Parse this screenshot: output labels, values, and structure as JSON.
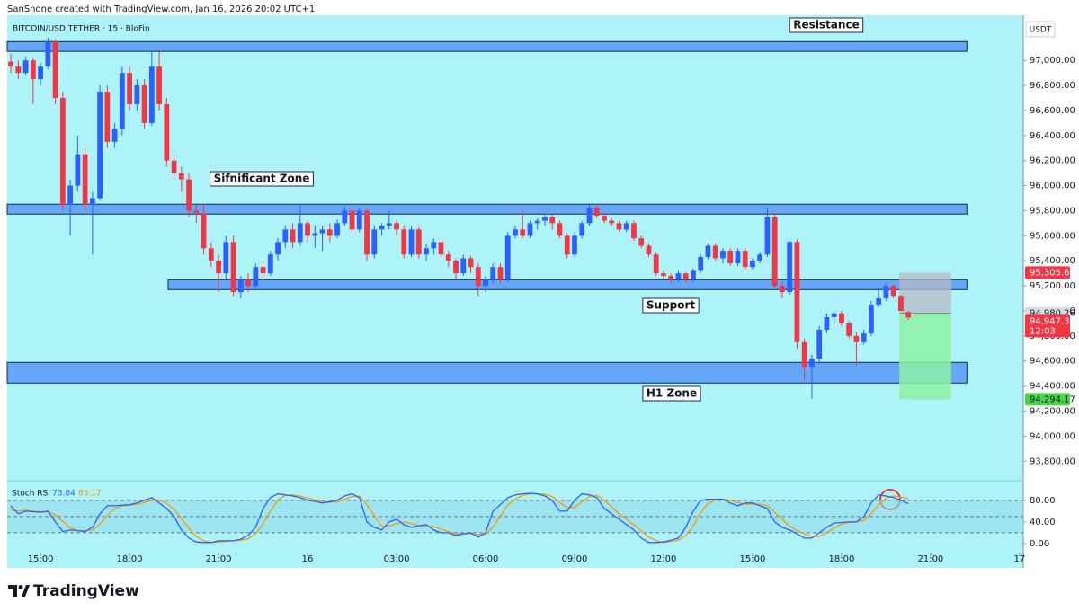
{
  "header": {
    "credit": "SanShone created with TradingView.com, Jan 16, 2026 20:02 UTC+1"
  },
  "footer": {
    "logo": "TradingView"
  },
  "chart_data": {
    "type": "candlestick",
    "title": "BITCOIN/USD TETHER · 15 · BloFin",
    "currency": "USDT",
    "up_color": "#2962ff",
    "down_color": "#f23645",
    "grid": false,
    "xlim": [
      -0.5,
      136.5
    ],
    "xticks": [
      {
        "value": 4,
        "label": "15:00"
      },
      {
        "value": 16,
        "label": "18:00"
      },
      {
        "value": 28,
        "label": "21:00"
      },
      {
        "value": 40,
        "label": "16"
      },
      {
        "value": 52,
        "label": "03:00"
      },
      {
        "value": 64,
        "label": "06:00"
      },
      {
        "value": 76,
        "label": "09:00"
      },
      {
        "value": 88,
        "label": "12:00"
      },
      {
        "value": 100,
        "label": "15:00"
      },
      {
        "value": 112,
        "label": "18:00"
      },
      {
        "value": 124,
        "label": "21:00"
      },
      {
        "value": 136,
        "label": "17"
      }
    ],
    "ylim": [
      93680,
      97195
    ],
    "yticks": [
      {
        "value": 93800,
        "label": "93,800.00"
      },
      {
        "value": 94000,
        "label": "94,000.00"
      },
      {
        "value": 94200,
        "label": "94,200.00"
      },
      {
        "value": 94400,
        "label": "94,400.00"
      },
      {
        "value": 94600,
        "label": "94,600.00"
      },
      {
        "value": 94800,
        "label": "94,800.00"
      },
      {
        "value": 95000,
        "label": "95,000.00"
      },
      {
        "value": 95200,
        "label": "95,200.00"
      },
      {
        "value": 95400,
        "label": "95,400.00"
      },
      {
        "value": 95600,
        "label": "95,600.00"
      },
      {
        "value": 95800,
        "label": "95,800.00"
      },
      {
        "value": 96000,
        "label": "96,000.00"
      },
      {
        "value": 96200,
        "label": "96,200.00"
      },
      {
        "value": 96400,
        "label": "96,400.00"
      },
      {
        "value": 96600,
        "label": "96,600.00"
      },
      {
        "value": 96800,
        "label": "96,800.00"
      },
      {
        "value": 97000,
        "label": "97,000.00"
      }
    ],
    "candles": [
      [
        96990,
        97050,
        96900,
        96950
      ],
      [
        96950,
        97000,
        96850,
        96900
      ],
      [
        96900,
        97030,
        96880,
        97000
      ],
      [
        97000,
        97020,
        96650,
        96850
      ],
      [
        96850,
        96980,
        96800,
        96950
      ],
      [
        96950,
        97180,
        96930,
        97150
      ],
      [
        97150,
        97170,
        96650,
        96700
      ],
      [
        96700,
        96750,
        95800,
        95850
      ],
      [
        95850,
        96050,
        95600,
        96000
      ],
      [
        96000,
        96400,
        95950,
        96250
      ],
      [
        96250,
        96300,
        95800,
        95850
      ],
      [
        95850,
        95950,
        95450,
        95900
      ],
      [
        95900,
        96800,
        95880,
        96750
      ],
      [
        96750,
        96800,
        96300,
        96350
      ],
      [
        96350,
        96500,
        96300,
        96450
      ],
      [
        96450,
        96950,
        96400,
        96900
      ],
      [
        96900,
        96950,
        96600,
        96650
      ],
      [
        96650,
        96850,
        96600,
        96800
      ],
      [
        96800,
        96850,
        96450,
        96500
      ],
      [
        96500,
        97080,
        96480,
        96950
      ],
      [
        96950,
        97070,
        96600,
        96650
      ],
      [
        96650,
        96700,
        96150,
        96200
      ],
      [
        96200,
        96250,
        96050,
        96100
      ],
      [
        96100,
        96150,
        95950,
        96050
      ],
      [
        96050,
        96100,
        95750,
        95800
      ],
      [
        95800,
        95850,
        95700,
        95780
      ],
      [
        95780,
        95850,
        95450,
        95500
      ],
      [
        95500,
        95550,
        95350,
        95400
      ],
      [
        95400,
        95450,
        95150,
        95300
      ],
      [
        95300,
        95600,
        95250,
        95550
      ],
      [
        95550,
        95600,
        95120,
        95150
      ],
      [
        95150,
        95280,
        95100,
        95250
      ],
      [
        95250,
        95300,
        95150,
        95200
      ],
      [
        95200,
        95380,
        95180,
        95350
      ],
      [
        95350,
        95400,
        95250,
        95300
      ],
      [
        95300,
        95480,
        95280,
        95450
      ],
      [
        95450,
        95580,
        95400,
        95550
      ],
      [
        95550,
        95680,
        95500,
        95650
      ],
      [
        95650,
        95700,
        95500,
        95550
      ],
      [
        95550,
        95850,
        95520,
        95700
      ],
      [
        95700,
        95720,
        95550,
        95600
      ],
      [
        95600,
        95680,
        95500,
        95620
      ],
      [
        95620,
        95680,
        95480,
        95650
      ],
      [
        95650,
        95700,
        95550,
        95600
      ],
      [
        95600,
        95730,
        95580,
        95700
      ],
      [
        95700,
        95830,
        95680,
        95800
      ],
      [
        95800,
        95820,
        95620,
        95650
      ],
      [
        95650,
        95820,
        95630,
        95800
      ],
      [
        95800,
        95810,
        95400,
        95450
      ],
      [
        95450,
        95680,
        95420,
        95650
      ],
      [
        95650,
        95700,
        95600,
        95680
      ],
      [
        95680,
        95800,
        95650,
        95700
      ],
      [
        95700,
        95720,
        95600,
        95650
      ],
      [
        95650,
        95680,
        95420,
        95450
      ],
      [
        95450,
        95680,
        95430,
        95650
      ],
      [
        95650,
        95670,
        95420,
        95450
      ],
      [
        95450,
        95530,
        95400,
        95500
      ],
      [
        95500,
        95580,
        95450,
        95550
      ],
      [
        95550,
        95570,
        95420,
        95450
      ],
      [
        95450,
        95480,
        95350,
        95400
      ],
      [
        95400,
        95420,
        95250,
        95300
      ],
      [
        95300,
        95450,
        95280,
        95420
      ],
      [
        95420,
        95440,
        95300,
        95350
      ],
      [
        95350,
        95380,
        95120,
        95200
      ],
      [
        95200,
        95280,
        95150,
        95250
      ],
      [
        95250,
        95380,
        95220,
        95350
      ],
      [
        95350,
        95380,
        95220,
        95250
      ],
      [
        95250,
        95630,
        95230,
        95600
      ],
      [
        95600,
        95680,
        95580,
        95650
      ],
      [
        95650,
        95800,
        95580,
        95600
      ],
      [
        95600,
        95720,
        95580,
        95700
      ],
      [
        95700,
        95740,
        95650,
        95720
      ],
      [
        95720,
        95780,
        95680,
        95750
      ],
      [
        95750,
        95770,
        95650,
        95700
      ],
      [
        95700,
        95720,
        95580,
        95600
      ],
      [
        95600,
        95620,
        95420,
        95450
      ],
      [
        95450,
        95630,
        95430,
        95600
      ],
      [
        95600,
        95720,
        95580,
        95700
      ],
      [
        95700,
        95850,
        95680,
        95820
      ],
      [
        95820,
        95840,
        95740,
        95760
      ],
      [
        95760,
        95780,
        95700,
        95720
      ],
      [
        95720,
        95740,
        95680,
        95700
      ],
      [
        95700,
        95720,
        95630,
        95650
      ],
      [
        95650,
        95720,
        95630,
        95700
      ],
      [
        95700,
        95720,
        95560,
        95580
      ],
      [
        95580,
        95600,
        95500,
        95520
      ],
      [
        95520,
        95540,
        95430,
        95450
      ],
      [
        95450,
        95470,
        95280,
        95300
      ],
      [
        95300,
        95320,
        95250,
        95280
      ],
      [
        95280,
        95300,
        95220,
        95250
      ],
      [
        95250,
        95320,
        95230,
        95300
      ],
      [
        95300,
        95310,
        95230,
        95250
      ],
      [
        95250,
        95340,
        95230,
        95320
      ],
      [
        95320,
        95450,
        95300,
        95430
      ],
      [
        95430,
        95540,
        95410,
        95520
      ],
      [
        95520,
        95540,
        95400,
        95420
      ],
      [
        95420,
        95500,
        95380,
        95480
      ],
      [
        95480,
        95500,
        95360,
        95380
      ],
      [
        95380,
        95500,
        95360,
        95480
      ],
      [
        95480,
        95500,
        95330,
        95350
      ],
      [
        95350,
        95420,
        95330,
        95400
      ],
      [
        95400,
        95470,
        95380,
        95450
      ],
      [
        95450,
        95820,
        95430,
        95750
      ],
      [
        95750,
        95780,
        95180,
        95200
      ],
      [
        95200,
        95230,
        95100,
        95150
      ],
      [
        95150,
        95560,
        95130,
        95550
      ],
      [
        95550,
        95570,
        94700,
        94750
      ],
      [
        94750,
        94780,
        94450,
        94550
      ],
      [
        94550,
        94650,
        94300,
        94620
      ],
      [
        94620,
        94880,
        94580,
        94850
      ],
      [
        94850,
        94980,
        94820,
        94950
      ],
      [
        94950,
        95000,
        94900,
        94980
      ],
      [
        94980,
        95000,
        94880,
        94900
      ],
      [
        94900,
        94920,
        94780,
        94800
      ],
      [
        94800,
        94830,
        94560,
        94750
      ],
      [
        94750,
        94850,
        94730,
        94820
      ],
      [
        94820,
        95080,
        94800,
        95050
      ],
      [
        95050,
        95180,
        95030,
        95100
      ],
      [
        95100,
        95220,
        95080,
        95200
      ],
      [
        95200,
        95210,
        95100,
        95120
      ],
      [
        95120,
        95130,
        95000,
        95000
      ],
      [
        94990,
        95000,
        94930,
        94947.38
      ]
    ],
    "last_price_label": "94,947.38",
    "countdown": "12:03",
    "zones": [
      {
        "label": "Resistance",
        "from": 97072,
        "to": 97150,
        "start": -0.5,
        "end": 128.9
      },
      {
        "label": "Sifnificant Zone",
        "from": 95773,
        "to": 95852,
        "start": -0.5,
        "end": 128.9
      },
      {
        "label": "Support",
        "from": 95170,
        "to": 95249,
        "start": 21.2,
        "end": 128.9
      },
      {
        "label": "H1 Zone",
        "from": 94424,
        "to": 94589,
        "start": -0.5,
        "end": 128.9
      }
    ],
    "position": {
      "start": 119.8,
      "end": 126.8,
      "stop": {
        "value": 95305.62,
        "label": "95,305.62"
      },
      "entry": {
        "value": 94980.26,
        "label": "94,980.26"
      },
      "target": {
        "value": 94294.17,
        "label": "94,294.17"
      }
    },
    "stoch": {
      "label": "Stoch RSI",
      "ylim": [
        -16.7,
        108
      ],
      "yticks": [
        {
          "value": 80,
          "label": "80.00"
        },
        {
          "value": 40,
          "label": "40.00"
        },
        {
          "value": 0,
          "label": "0.00"
        }
      ],
      "levels": [
        80,
        50,
        20
      ],
      "k": {
        "color": "#2962ff",
        "values": [
          70,
          55,
          60,
          59,
          58,
          60,
          40,
          22,
          25,
          24,
          22,
          30,
          55,
          70,
          70,
          71,
          72,
          75,
          80,
          85,
          75,
          65,
          50,
          25,
          10,
          3,
          2,
          2,
          5,
          5,
          5,
          8,
          15,
          30,
          65,
          85,
          92,
          90,
          88,
          85,
          80,
          78,
          75,
          77,
          80,
          88,
          92,
          85,
          40,
          30,
          25,
          40,
          45,
          35,
          30,
          33,
          35,
          25,
          20,
          20,
          15,
          18,
          20,
          12,
          20,
          60,
          72,
          85,
          90,
          92,
          93,
          92,
          88,
          80,
          60,
          60,
          80,
          92,
          90,
          85,
          65,
          55,
          45,
          35,
          25,
          10,
          2,
          2,
          3,
          6,
          10,
          30,
          60,
          80,
          82,
          82,
          82,
          75,
          70,
          75,
          75,
          70,
          65,
          40,
          30,
          25,
          18,
          10,
          10,
          20,
          30,
          38,
          39,
          40,
          40,
          50,
          75,
          90,
          88,
          85,
          80,
          73.84
        ]
      },
      "d": {
        "color": "#ff9800",
        "values": [
          62,
          60,
          62,
          60,
          59,
          59,
          53,
          41,
          29,
          24,
          24,
          25,
          36,
          52,
          65,
          70,
          71,
          73,
          76,
          80,
          80,
          75,
          63,
          47,
          28,
          13,
          5,
          2,
          3,
          4,
          5,
          6,
          9,
          18,
          37,
          60,
          81,
          89,
          90,
          88,
          84,
          81,
          78,
          77,
          77,
          82,
          87,
          88,
          72,
          52,
          32,
          32,
          37,
          40,
          37,
          33,
          33,
          31,
          27,
          22,
          18,
          18,
          18,
          17,
          17,
          31,
          51,
          72,
          82,
          89,
          92,
          92,
          91,
          87,
          76,
          67,
          67,
          77,
          87,
          89,
          80,
          68,
          55,
          45,
          35,
          23,
          12,
          5,
          2,
          4,
          6,
          15,
          33,
          57,
          74,
          81,
          82,
          80,
          76,
          73,
          73,
          73,
          70,
          58,
          45,
          32,
          24,
          18,
          13,
          13,
          20,
          29,
          36,
          39,
          40,
          43,
          55,
          72,
          84,
          88,
          86,
          83.17
        ]
      }
    }
  }
}
